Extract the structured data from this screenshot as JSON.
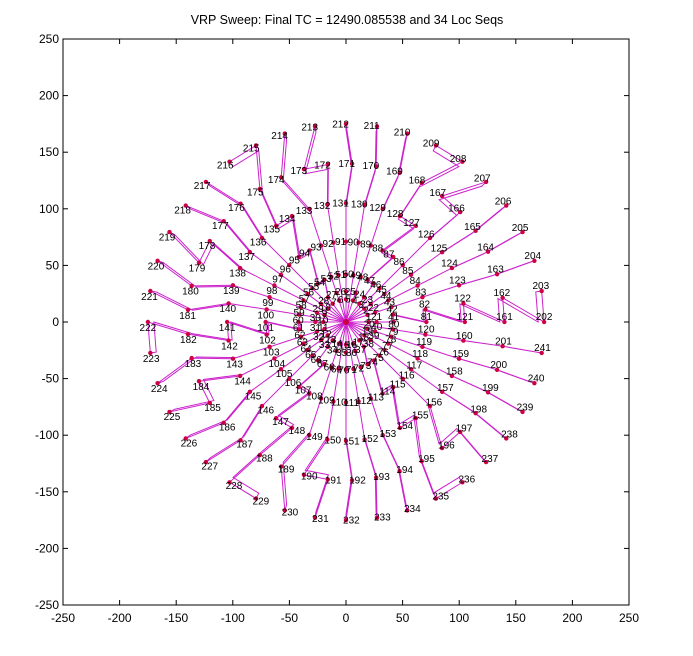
{
  "chart_data": {
    "type": "scatter",
    "title": "VRP Sweep: Final TC = 12490.085538 and 34 Loc Seqs",
    "xlabel": "",
    "ylabel": "",
    "xlim": [
      -250,
      250
    ],
    "ylim": [
      -250,
      250
    ],
    "x_ticks": [
      -250,
      -200,
      -150,
      -100,
      -50,
      0,
      50,
      100,
      150,
      200,
      250
    ],
    "y_ticks": [
      -250,
      -200,
      -150,
      -100,
      -50,
      0,
      50,
      100,
      150,
      200,
      250
    ],
    "grid": false,
    "colors": {
      "route": "#cc22cc",
      "node": "#cc0044",
      "axes": "#000000"
    },
    "depot": {
      "x": 0,
      "y": 0
    },
    "rings": [
      {
        "radius": 20,
        "labels": [
          "1",
          "2",
          "3",
          "4",
          "5",
          "6",
          "7",
          "8",
          "9",
          "10",
          "11",
          "12",
          "13",
          "14",
          "15",
          "16",
          "17",
          "18",
          "19",
          "20"
        ]
      },
      {
        "radius": 27,
        "labels": [
          "21",
          "22",
          "23",
          "24",
          "25",
          "26",
          "27",
          "28",
          "29",
          "30",
          "31",
          "32",
          "33",
          "34",
          "35",
          "36",
          "37",
          "38",
          "39",
          "40"
        ]
      },
      {
        "radius": 42,
        "labels": [
          "41",
          "42",
          "43",
          "44",
          "45",
          "46",
          "47",
          "48",
          "49",
          "50",
          "51",
          "52",
          "53",
          "54",
          "55",
          "56",
          "57",
          "58",
          "59",
          "60",
          "61",
          "62",
          "63",
          "64",
          "65",
          "66",
          "67",
          "68",
          "69",
          "70",
          "71",
          "72",
          "73",
          "74",
          "75",
          "76",
          "77",
          "78",
          "79",
          "80"
        ]
      },
      {
        "radius": 71,
        "labels": [
          "81",
          "82",
          "83",
          "84",
          "85",
          "86",
          "87",
          "88",
          "89",
          "90",
          "91",
          "92",
          "93",
          "94",
          "95",
          "96",
          "97",
          "98",
          "99",
          "100",
          "101",
          "102",
          "103",
          "104",
          "105",
          "106",
          "107",
          "108",
          "109",
          "110",
          "111",
          "112",
          "113",
          "114",
          "115",
          "116",
          "117",
          "118",
          "119",
          "120"
        ]
      },
      {
        "radius": 105,
        "labels": [
          "121",
          "122",
          "123",
          "124",
          "125",
          "126",
          "127",
          "128",
          "129",
          "130",
          "131",
          "132",
          "133",
          "134",
          "135",
          "136",
          "137",
          "138",
          "139",
          "140",
          "141",
          "142",
          "143",
          "144",
          "145",
          "146",
          "147",
          "148",
          "149",
          "150",
          "151",
          "152",
          "153",
          "154",
          "155",
          "156",
          "157",
          "158",
          "159",
          "160"
        ]
      },
      {
        "radius": 140,
        "labels": [
          "161",
          "162",
          "163",
          "164",
          "165",
          "166",
          "167",
          "168",
          "169",
          "170",
          "171",
          "172",
          "173",
          "174",
          "175",
          "176",
          "177",
          "178",
          "179",
          "180",
          "181",
          "182",
          "183",
          "184",
          "185",
          "186",
          "187",
          "188",
          "189",
          "190",
          "191",
          "192",
          "193",
          "194",
          "195",
          "196",
          "197",
          "198",
          "199",
          "200",
          "201"
        ]
      },
      {
        "radius": 175,
        "labels": [
          "202",
          "203",
          "204",
          "205",
          "206",
          "207",
          "208",
          "209",
          "210",
          "211",
          "212",
          "213",
          "214",
          "215",
          "216",
          "217",
          "218",
          "219",
          "220",
          "221",
          "222",
          "223",
          "224",
          "225",
          "226",
          "227",
          "228",
          "229",
          "230",
          "231",
          "232",
          "233",
          "234",
          "235",
          "236",
          "237",
          "238",
          "239",
          "240",
          "241"
        ]
      }
    ],
    "routes": 34
  }
}
